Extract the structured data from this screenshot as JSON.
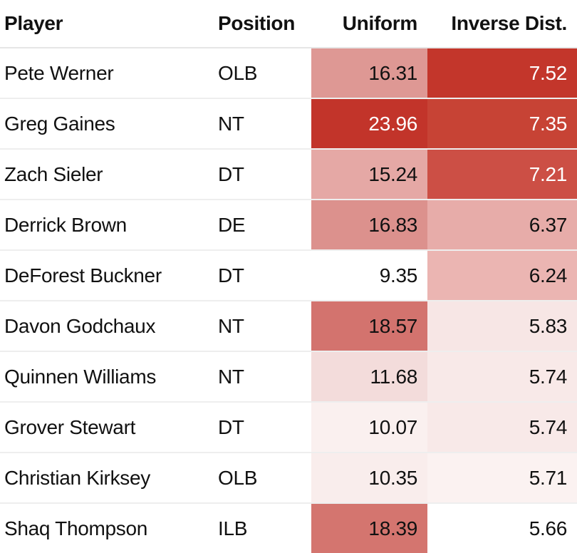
{
  "table": {
    "columns": [
      {
        "key": "player",
        "label": "Player",
        "align": "left"
      },
      {
        "key": "position",
        "label": "Position",
        "align": "left"
      },
      {
        "key": "uniform",
        "label": "Uniform",
        "align": "right"
      },
      {
        "key": "inverse",
        "label": "Inverse Dist.",
        "align": "right"
      }
    ],
    "rows": [
      {
        "player": "Pete Werner",
        "position": "OLB",
        "uniform": "16.31",
        "inverse": "7.52",
        "uniform_bg": "#DE9894",
        "uniform_fg": "#111111",
        "inverse_bg": "#C3362B",
        "inverse_fg": "#FFFFFF"
      },
      {
        "player": "Greg Gaines",
        "position": "NT",
        "uniform": "23.96",
        "inverse": "7.35",
        "uniform_bg": "#C2342A",
        "uniform_fg": "#FFFFFF",
        "inverse_bg": "#C74335",
        "inverse_fg": "#FFFFFF"
      },
      {
        "player": "Zach Sieler",
        "position": "DT",
        "uniform": "15.24",
        "inverse": "7.21",
        "uniform_bg": "#E5A8A5",
        "uniform_fg": "#111111",
        "inverse_bg": "#CC4F45",
        "inverse_fg": "#FFFFFF"
      },
      {
        "player": "Derrick Brown",
        "position": "DE",
        "uniform": "16.83",
        "inverse": "6.37",
        "uniform_bg": "#DC918D",
        "uniform_fg": "#111111",
        "inverse_bg": "#E7ACA9",
        "inverse_fg": "#111111"
      },
      {
        "player": "DeForest Buckner",
        "position": "DT",
        "uniform": "9.35",
        "inverse": "6.24",
        "uniform_bg": "#FFFFFF",
        "uniform_fg": "#111111",
        "inverse_bg": "#EBB5B2",
        "inverse_fg": "#111111"
      },
      {
        "player": "Davon Godchaux",
        "position": "NT",
        "uniform": "18.57",
        "inverse": "5.83",
        "uniform_bg": "#D3736E",
        "uniform_fg": "#111111",
        "inverse_bg": "#F7E6E5",
        "inverse_fg": "#111111"
      },
      {
        "player": "Quinnen Williams",
        "position": "NT",
        "uniform": "11.68",
        "inverse": "5.74",
        "uniform_bg": "#F3DCDB",
        "uniform_fg": "#111111",
        "inverse_bg": "#F8E9E8",
        "inverse_fg": "#111111"
      },
      {
        "player": "Grover Stewart",
        "position": "DT",
        "uniform": "10.07",
        "inverse": "5.74",
        "uniform_bg": "#FAF0EF",
        "uniform_fg": "#111111",
        "inverse_bg": "#F8E9E8",
        "inverse_fg": "#111111"
      },
      {
        "player": "Christian Kirksey",
        "position": "OLB",
        "uniform": "10.35",
        "inverse": "5.71",
        "uniform_bg": "#F9EDEC",
        "uniform_fg": "#111111",
        "inverse_bg": "#FBF2F1",
        "inverse_fg": "#111111"
      },
      {
        "player": "Shaq Thompson",
        "position": "ILB",
        "uniform": "18.39",
        "inverse": "5.66",
        "uniform_bg": "#D4756F",
        "uniform_fg": "#111111",
        "inverse_bg": "#FFFFFF",
        "inverse_fg": "#111111"
      }
    ]
  },
  "colors": {
    "heat_max": "#C2342A",
    "heat_min": "#FFFFFF",
    "row_divider": "#EEEEEE",
    "header_divider": "#E6E6E6",
    "text_dark": "#111111",
    "text_light": "#FFFFFF"
  },
  "chart_data": {
    "type": "table",
    "title": "",
    "columns": [
      "Player",
      "Position",
      "Uniform",
      "Inverse Dist."
    ],
    "rows": [
      [
        "Pete Werner",
        "OLB",
        16.31,
        7.52
      ],
      [
        "Greg Gaines",
        "NT",
        23.96,
        7.35
      ],
      [
        "Zach Sieler",
        "DT",
        15.24,
        7.21
      ],
      [
        "Derrick Brown",
        "DE",
        16.83,
        6.37
      ],
      [
        "DeForest Buckner",
        "DT",
        9.35,
        6.24
      ],
      [
        "Davon Godchaux",
        "NT",
        18.57,
        5.83
      ],
      [
        "Quinnen Williams",
        "NT",
        11.68,
        5.74
      ],
      [
        "Grover Stewart",
        "DT",
        10.07,
        5.74
      ],
      [
        "Christian Kirksey",
        "OLB",
        10.35,
        5.71
      ],
      [
        "Shaq Thompson",
        "ILB",
        18.39,
        5.66
      ]
    ],
    "heatmap_columns": [
      "Uniform",
      "Inverse Dist."
    ],
    "legend_position": "none",
    "grid": false
  }
}
